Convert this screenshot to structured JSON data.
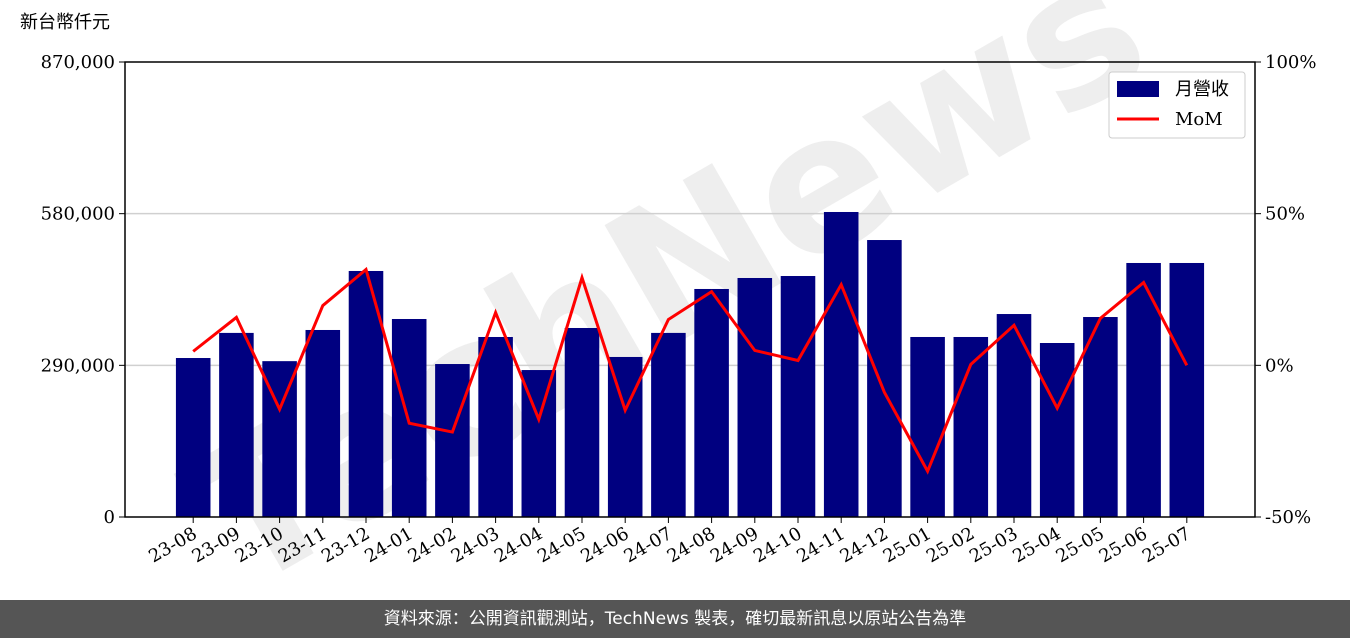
{
  "chart_data": {
    "type": "bar",
    "y_label": "新台幣仟元",
    "watermark": "TechNews",
    "footer": "資料來源：公開資訊觀測站，TechNews 製表，確切最新訊息以原站公告為準",
    "categories": [
      "23-08",
      "23-09",
      "23-10",
      "23-11",
      "23-12",
      "24-01",
      "24-02",
      "24-03",
      "24-04",
      "24-05",
      "24-06",
      "24-07",
      "24-08",
      "24-09",
      "24-10",
      "24-11",
      "24-12",
      "25-01",
      "25-02",
      "25-03",
      "25-04",
      "25-05",
      "25-06",
      "25-07"
    ],
    "series": [
      {
        "name": "月營收",
        "type": "bar",
        "color": "#000080",
        "axis": "y",
        "values": [
          304000,
          352000,
          298000,
          357600,
          470400,
          378600,
          292500,
          344200,
          281000,
          361400,
          306000,
          352000,
          436000,
          457000,
          460800,
          583200,
          529600,
          344200,
          344200,
          388100,
          332700,
          382400,
          485700,
          485700
        ]
      },
      {
        "name": "MoM",
        "type": "line",
        "color": "#ff0000",
        "axis": "y2",
        "values": [
          4.6,
          15.8,
          -14.5,
          19.7,
          31.6,
          -19.1,
          -22.0,
          17.4,
          -17.8,
          28.9,
          -14.8,
          15.1,
          24.3,
          4.9,
          1.6,
          26.6,
          -8.9,
          -34.9,
          0.3,
          13.2,
          -14.1,
          15.5,
          27.3,
          0
        ]
      }
    ],
    "ylim": [
      0,
      870000
    ],
    "yticks": [
      0,
      {
        "value": 290000,
        "label": "290,000"
      },
      {
        "value": 580000,
        "label": "580,000"
      },
      {
        "value": 870000,
        "label": "870,000"
      }
    ],
    "y2lim": [
      -50,
      100
    ],
    "y2ticks": [
      {
        "value": -50,
        "label": "-50%"
      },
      {
        "value": 0,
        "label": "0%"
      },
      {
        "value": 50,
        "label": "50%"
      },
      {
        "value": 100,
        "label": "100%"
      }
    ],
    "grid": true,
    "legend": "upper right"
  }
}
